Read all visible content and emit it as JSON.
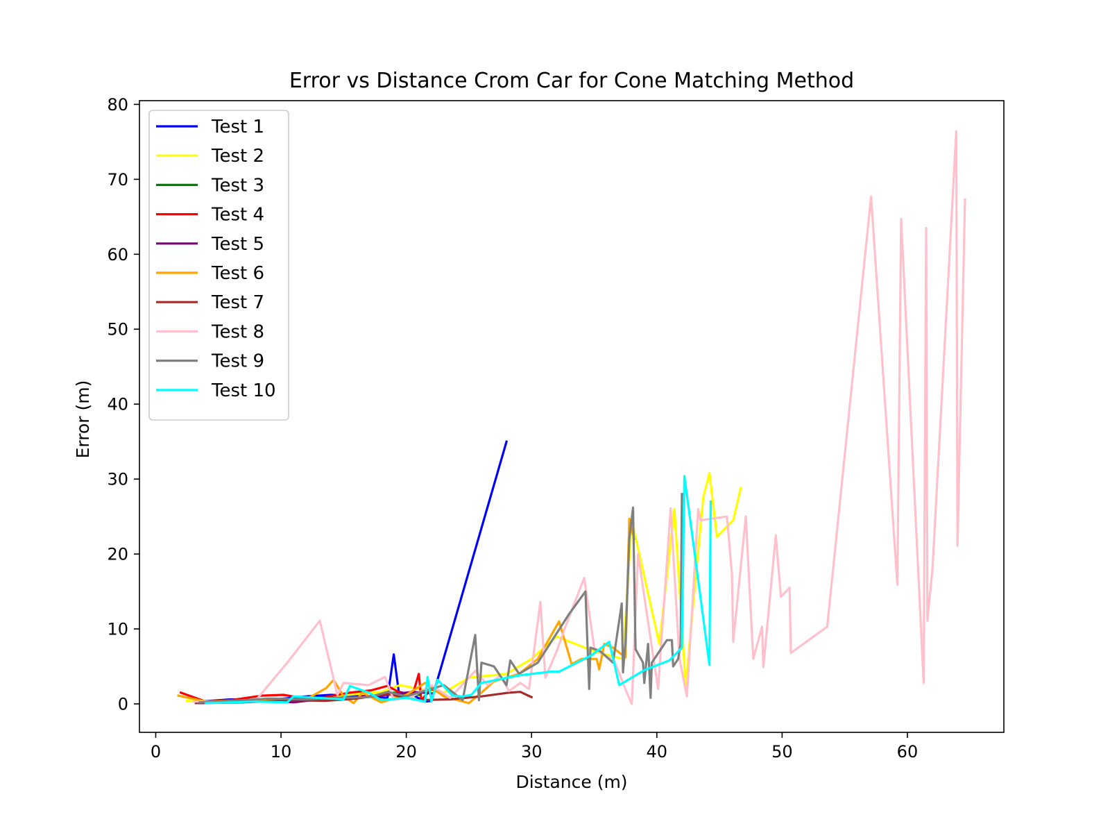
{
  "chart_data": {
    "type": "line",
    "title": "Error vs Distance Crom Car for Cone Matching Method",
    "xlabel": "Distance (m)",
    "ylabel": "Error (m)",
    "xlim": [
      -1.3,
      67.7
    ],
    "ylim": [
      -3.8,
      80.5
    ],
    "xticks": [
      0,
      10,
      20,
      30,
      40,
      50,
      60
    ],
    "yticks": [
      0,
      10,
      20,
      30,
      40,
      50,
      60,
      70,
      80
    ],
    "grid": false,
    "legend_position": "upper-left",
    "series": [
      {
        "name": "Test 1",
        "color": "#0000ff",
        "points": [
          [
            3.5,
            0.3
          ],
          [
            6,
            0.6
          ],
          [
            9,
            0.5
          ],
          [
            12,
            1.0
          ],
          [
            14,
            1.2
          ],
          [
            17,
            1.0
          ],
          [
            18.5,
            0.8
          ],
          [
            19.0,
            6.6
          ],
          [
            19.4,
            1.6
          ],
          [
            20.5,
            1.2
          ],
          [
            21.5,
            0.3
          ],
          [
            22.0,
            0.4
          ],
          [
            28.0,
            35.0
          ]
        ]
      },
      {
        "name": "Test 2",
        "color": "#ffff00",
        "points": [
          [
            2.5,
            0.4
          ],
          [
            4,
            0.3
          ],
          [
            8,
            0.4
          ],
          [
            10,
            0.6
          ],
          [
            12,
            0.5
          ],
          [
            14,
            1.0
          ],
          [
            16,
            1.3
          ],
          [
            18,
            1.6
          ],
          [
            19.5,
            2.5
          ],
          [
            21,
            2.0
          ],
          [
            23,
            1.5
          ],
          [
            25,
            3.5
          ],
          [
            28,
            4.0
          ],
          [
            30,
            6.0
          ],
          [
            32,
            9.0
          ],
          [
            35,
            7.0
          ],
          [
            37.3,
            6.0
          ],
          [
            38.0,
            24.5
          ],
          [
            40.2,
            8.0
          ],
          [
            41.4,
            26.0
          ],
          [
            42.3,
            2.5
          ],
          [
            43.7,
            27.5
          ],
          [
            44.2,
            30.8
          ],
          [
            44.8,
            22.3
          ],
          [
            46.1,
            24.5
          ],
          [
            46.7,
            28.8
          ]
        ]
      },
      {
        "name": "Test 3",
        "color": "#008000",
        "points": [
          [
            3.5,
            0.3
          ],
          [
            6.5,
            0.5
          ],
          [
            9,
            0.6
          ],
          [
            12,
            0.6
          ],
          [
            14.5,
            0.8
          ],
          [
            17,
            1.0
          ],
          [
            19,
            1.5
          ],
          [
            21,
            1.2
          ]
        ]
      },
      {
        "name": "Test 4",
        "color": "#ff0000",
        "points": [
          [
            2,
            1.5
          ],
          [
            4,
            0.3
          ],
          [
            6,
            0.5
          ],
          [
            8.5,
            1.1
          ],
          [
            10.2,
            1.2
          ],
          [
            12,
            0.7
          ],
          [
            13.5,
            0.9
          ],
          [
            15.5,
            1.5
          ],
          [
            17.2,
            1.8
          ],
          [
            18.5,
            2.4
          ],
          [
            19.5,
            1.5
          ],
          [
            20.5,
            1.2
          ],
          [
            21.0,
            4.0
          ],
          [
            21.2,
            0.5
          ],
          [
            22.0,
            2.0
          ],
          [
            23.0,
            1.2
          ]
        ]
      },
      {
        "name": "Test 5",
        "color": "#800080",
        "points": [
          [
            3.5,
            0.1
          ],
          [
            7,
            0.2
          ],
          [
            9.5,
            0.4
          ],
          [
            11,
            0.2
          ],
          [
            13,
            0.6
          ],
          [
            16,
            0.9
          ],
          [
            18.5,
            1.2
          ],
          [
            20.5,
            1.6
          ],
          [
            22,
            1.4
          ]
        ]
      },
      {
        "name": "Test 6",
        "color": "#ffa500",
        "points": [
          [
            1.8,
            1.1
          ],
          [
            4,
            0.3
          ],
          [
            6,
            0.4
          ],
          [
            8,
            0.4
          ],
          [
            10,
            0.5
          ],
          [
            12,
            0.6
          ],
          [
            13.6,
            2.1
          ],
          [
            14.2,
            3.2
          ],
          [
            15,
            1.0
          ],
          [
            15.8,
            0.1
          ],
          [
            16.5,
            1.5
          ],
          [
            18,
            0.2
          ],
          [
            20,
            1.2
          ],
          [
            21.5,
            2.8
          ],
          [
            23,
            1.0
          ],
          [
            25,
            0.1
          ],
          [
            26,
            1.5
          ],
          [
            27,
            3.0
          ],
          [
            29,
            4.0
          ],
          [
            30.5,
            6.0
          ],
          [
            32.2,
            11.0
          ],
          [
            33.2,
            5.3
          ],
          [
            34,
            6.0
          ],
          [
            35.2,
            6.0
          ],
          [
            35.4,
            4.6
          ],
          [
            35.8,
            8.0
          ],
          [
            36.5,
            7.5
          ],
          [
            37.5,
            6.2
          ],
          [
            37.8,
            24.7
          ],
          [
            38.2,
            22.0
          ]
        ]
      },
      {
        "name": "Test 7",
        "color": "#a52a2a",
        "points": [
          [
            3.2,
            0.1
          ],
          [
            6,
            0.2
          ],
          [
            8.5,
            0.3
          ],
          [
            11,
            0.5
          ],
          [
            13.5,
            0.4
          ],
          [
            16,
            0.7
          ],
          [
            18.5,
            1.3
          ],
          [
            21,
            0.5
          ],
          [
            23.5,
            0.6
          ],
          [
            26,
            1.0
          ],
          [
            28.2,
            1.5
          ],
          [
            29.1,
            1.6
          ],
          [
            30.0,
            0.9
          ]
        ]
      },
      {
        "name": "Test 8",
        "color": "#ffc0cb",
        "points": [
          [
            3,
            0.3
          ],
          [
            5,
            0.3
          ],
          [
            8,
            0.5
          ],
          [
            10.5,
            5.5
          ],
          [
            13.1,
            11.1
          ],
          [
            14.5,
            1.2
          ],
          [
            15.0,
            2.8
          ],
          [
            17,
            2.5
          ],
          [
            18.3,
            3.6
          ],
          [
            19.0,
            0.5
          ],
          [
            20.5,
            1.0
          ],
          [
            22,
            2.5
          ],
          [
            23.5,
            0.8
          ],
          [
            25.5,
            4.4
          ],
          [
            26.5,
            2.5
          ],
          [
            27.5,
            3.8
          ],
          [
            28.2,
            1.7
          ],
          [
            29.1,
            2.8
          ],
          [
            29.8,
            2.0
          ],
          [
            30.7,
            13.6
          ],
          [
            31.1,
            3.5
          ],
          [
            32.0,
            7.0
          ],
          [
            32.7,
            10.3
          ],
          [
            34.2,
            16.8
          ],
          [
            35.0,
            7.5
          ],
          [
            35.8,
            6.5
          ],
          [
            36.6,
            5.8
          ],
          [
            37.6,
            1.5
          ],
          [
            38.0,
            0.0
          ],
          [
            38.5,
            20.0
          ],
          [
            39.3,
            10.9
          ],
          [
            40.1,
            2.0
          ],
          [
            41.1,
            26.1
          ],
          [
            41.8,
            6.1
          ],
          [
            42.4,
            1.0
          ],
          [
            43.3,
            26.0
          ],
          [
            43.5,
            24.5
          ],
          [
            45.6,
            25.0
          ],
          [
            46.0,
            17.2
          ],
          [
            46.1,
            8.3
          ],
          [
            47.1,
            25.0
          ],
          [
            47.7,
            6.0
          ],
          [
            48.4,
            10.3
          ],
          [
            48.5,
            4.9
          ],
          [
            49.5,
            22.5
          ],
          [
            49.9,
            14.3
          ],
          [
            50.6,
            15.5
          ],
          [
            50.7,
            6.8
          ],
          [
            53.6,
            10.3
          ],
          [
            57.1,
            67.7
          ],
          [
            59.2,
            15.9
          ],
          [
            59.5,
            64.7
          ],
          [
            61.3,
            2.8
          ],
          [
            61.5,
            63.5
          ],
          [
            61.6,
            11.1
          ],
          [
            62.0,
            18.0
          ],
          [
            63.9,
            76.4
          ],
          [
            64.0,
            21.1
          ],
          [
            64.6,
            67.3
          ]
        ]
      },
      {
        "name": "Test 9",
        "color": "#808080",
        "points": [
          [
            3.5,
            0.2
          ],
          [
            6,
            0.4
          ],
          [
            9,
            0.7
          ],
          [
            12,
            0.6
          ],
          [
            15,
            0.8
          ],
          [
            17,
            0.9
          ],
          [
            18.5,
            1.6
          ],
          [
            20,
            1.0
          ],
          [
            22,
            2.0
          ],
          [
            23,
            2.5
          ],
          [
            24.5,
            0.5
          ],
          [
            25.5,
            9.2
          ],
          [
            25.8,
            0.5
          ],
          [
            26,
            5.5
          ],
          [
            27,
            5.0
          ],
          [
            28,
            2.5
          ],
          [
            28.3,
            5.8
          ],
          [
            29.0,
            4.0
          ],
          [
            30.5,
            5.5
          ],
          [
            33,
            12.0
          ],
          [
            34.3,
            15.0
          ],
          [
            34.6,
            2.0
          ],
          [
            34.7,
            7.5
          ],
          [
            35.5,
            7.0
          ],
          [
            36.5,
            5.5
          ],
          [
            37.2,
            13.4
          ],
          [
            37.3,
            4.2
          ],
          [
            37.5,
            8.2
          ],
          [
            37.8,
            22.0
          ],
          [
            38.1,
            26.2
          ],
          [
            38.3,
            7.3
          ],
          [
            38.9,
            5.5
          ],
          [
            39.0,
            2.8
          ],
          [
            39.3,
            8.0
          ],
          [
            39.5,
            0.8
          ],
          [
            39.6,
            5.5
          ],
          [
            40.8,
            8.5
          ],
          [
            41.2,
            8.5
          ],
          [
            41.3,
            5.0
          ],
          [
            41.7,
            6.0
          ],
          [
            41.9,
            8.0
          ],
          [
            42.0,
            28.0
          ]
        ]
      },
      {
        "name": "Test 10",
        "color": "#00ffff",
        "points": [
          [
            4,
            0.1
          ],
          [
            6,
            0.2
          ],
          [
            8,
            0.3
          ],
          [
            10.5,
            0.2
          ],
          [
            11,
            1.0
          ],
          [
            13,
            0.8
          ],
          [
            15,
            0.6
          ],
          [
            15.5,
            2.4
          ],
          [
            17,
            1.5
          ],
          [
            18,
            0.5
          ],
          [
            20,
            0.8
          ],
          [
            21.5,
            0.3
          ],
          [
            21.7,
            3.6
          ],
          [
            22,
            0.3
          ],
          [
            22.5,
            3.2
          ],
          [
            23.7,
            1.1
          ],
          [
            24.5,
            1.0
          ],
          [
            25.2,
            1.2
          ],
          [
            26,
            2.8
          ],
          [
            27.5,
            3.3
          ],
          [
            29,
            3.8
          ],
          [
            31.5,
            4.3
          ],
          [
            32.2,
            4.3
          ],
          [
            34.8,
            6.5
          ],
          [
            36.2,
            8.3
          ],
          [
            37.0,
            2.5
          ],
          [
            39,
            4.5
          ],
          [
            41,
            5.8
          ],
          [
            42.0,
            7.5
          ],
          [
            42.2,
            30.4
          ],
          [
            44.2,
            5.2
          ],
          [
            44.3,
            27.0
          ]
        ]
      }
    ]
  }
}
